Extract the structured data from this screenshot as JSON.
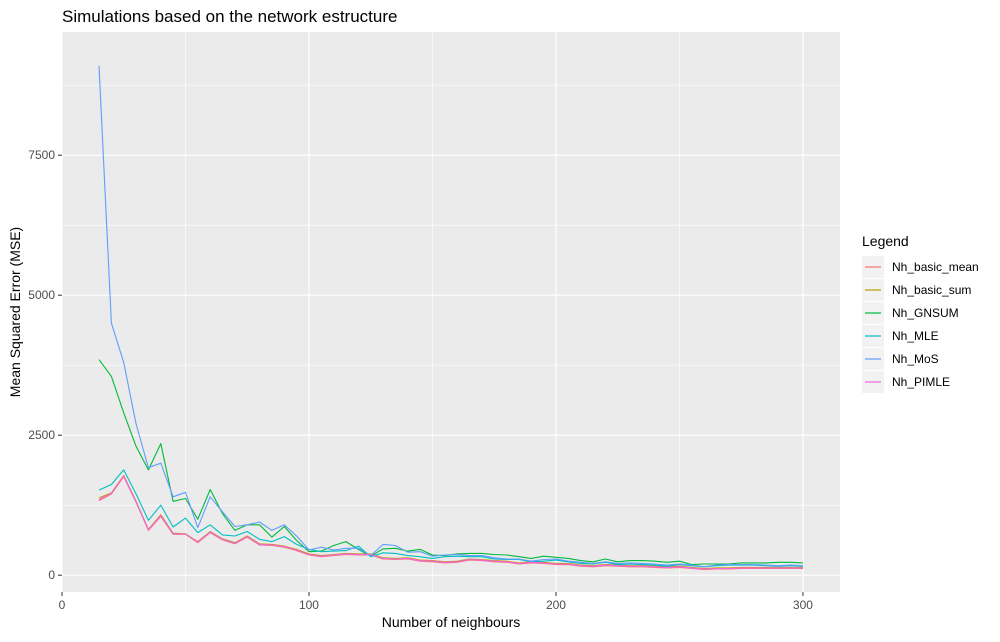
{
  "chart_data": {
    "type": "line",
    "title": "Simulations based on the network estructure",
    "xlabel": "Number of neighbours",
    "ylabel": "Mean Squared Error (MSE)",
    "xlim": [
      0,
      315
    ],
    "ylim": [
      -300,
      9700
    ],
    "x_ticks": [
      0,
      100,
      200,
      300
    ],
    "y_ticks": [
      0,
      2500,
      5000,
      7500
    ],
    "x_tick_labels": [
      "0",
      "100",
      "200",
      "300"
    ],
    "y_tick_labels": [
      "0",
      "2500",
      "5000",
      "7500"
    ],
    "grid": true,
    "legend": {
      "title": "Legend",
      "placement": "right"
    },
    "x": [
      15,
      20,
      25,
      30,
      35,
      40,
      45,
      50,
      55,
      60,
      65,
      70,
      75,
      80,
      85,
      90,
      95,
      100,
      105,
      110,
      115,
      120,
      125,
      130,
      135,
      140,
      145,
      150,
      155,
      160,
      165,
      170,
      175,
      180,
      185,
      190,
      195,
      200,
      205,
      210,
      215,
      220,
      225,
      230,
      235,
      240,
      245,
      250,
      255,
      260,
      265,
      270,
      275,
      280,
      285,
      290,
      295,
      300
    ],
    "series": [
      {
        "name": "Nh_basic_mean",
        "color": "#F8766D",
        "values": [
          1330,
          1450,
          1760,
          1300,
          800,
          1050,
          730,
          730,
          580,
          760,
          630,
          560,
          680,
          540,
          530,
          500,
          440,
          360,
          330,
          350,
          370,
          360,
          360,
          290,
          280,
          290,
          250,
          240,
          220,
          230,
          270,
          260,
          240,
          230,
          200,
          220,
          210,
          190,
          190,
          160,
          150,
          170,
          160,
          150,
          150,
          140,
          130,
          140,
          120,
          100,
          110,
          110,
          120,
          120,
          120,
          120,
          120,
          120
        ]
      },
      {
        "name": "Nh_basic_sum",
        "color": "#B79F00",
        "values": [
          1380,
          1470,
          1780,
          1320,
          820,
          1080,
          750,
          740,
          600,
          780,
          650,
          580,
          700,
          560,
          550,
          520,
          460,
          380,
          350,
          370,
          390,
          380,
          380,
          310,
          300,
          310,
          270,
          260,
          240,
          250,
          290,
          280,
          260,
          250,
          220,
          240,
          230,
          210,
          210,
          180,
          170,
          190,
          180,
          170,
          170,
          160,
          150,
          160,
          140,
          120,
          130,
          130,
          140,
          140,
          140,
          140,
          140,
          140
        ]
      },
      {
        "name": "Nh_GNSUM",
        "color": "#00BA38",
        "values": [
          3850,
          3550,
          2900,
          2300,
          1880,
          2350,
          1320,
          1370,
          1000,
          1530,
          1100,
          800,
          900,
          900,
          680,
          870,
          620,
          420,
          430,
          530,
          600,
          460,
          340,
          470,
          480,
          430,
          460,
          360,
          350,
          380,
          390,
          390,
          370,
          360,
          330,
          300,
          340,
          320,
          300,
          260,
          240,
          290,
          240,
          260,
          260,
          250,
          230,
          250,
          190,
          200,
          200,
          200,
          220,
          220,
          220,
          230,
          230,
          220
        ]
      },
      {
        "name": "Nh_MLE",
        "color": "#00BFC4",
        "values": [
          1520,
          1620,
          1880,
          1450,
          980,
          1250,
          860,
          1020,
          760,
          900,
          720,
          700,
          780,
          640,
          600,
          690,
          550,
          460,
          420,
          430,
          440,
          520,
          330,
          400,
          390,
          350,
          330,
          300,
          330,
          340,
          330,
          330,
          290,
          280,
          280,
          240,
          250,
          270,
          240,
          210,
          200,
          230,
          190,
          200,
          190,
          180,
          160,
          190,
          170,
          150,
          170,
          180,
          180,
          180,
          170,
          160,
          170,
          160
        ]
      },
      {
        "name": "Nh_MoS",
        "color": "#619CFF",
        "values": [
          9100,
          4500,
          3800,
          2700,
          1920,
          2000,
          1400,
          1480,
          850,
          1400,
          1130,
          870,
          900,
          950,
          800,
          900,
          700,
          450,
          500,
          450,
          480,
          480,
          350,
          550,
          530,
          410,
          420,
          340,
          360,
          370,
          350,
          350,
          310,
          290,
          290,
          250,
          280,
          290,
          250,
          230,
          210,
          240,
          210,
          220,
          210,
          200,
          180,
          200,
          180,
          150,
          180,
          190,
          190,
          190,
          180,
          170,
          180,
          170
        ]
      },
      {
        "name": "Nh_PIMLE",
        "color": "#F564E3",
        "values": [
          1350,
          1460,
          1770,
          1310,
          810,
          1060,
          740,
          735,
          590,
          770,
          640,
          570,
          690,
          550,
          540,
          510,
          450,
          370,
          340,
          360,
          380,
          370,
          370,
          300,
          290,
          300,
          260,
          250,
          230,
          240,
          280,
          270,
          250,
          240,
          210,
          230,
          220,
          200,
          200,
          170,
          160,
          180,
          170,
          160,
          160,
          150,
          140,
          150,
          130,
          110,
          120,
          120,
          130,
          130,
          130,
          130,
          130,
          130
        ]
      }
    ]
  }
}
